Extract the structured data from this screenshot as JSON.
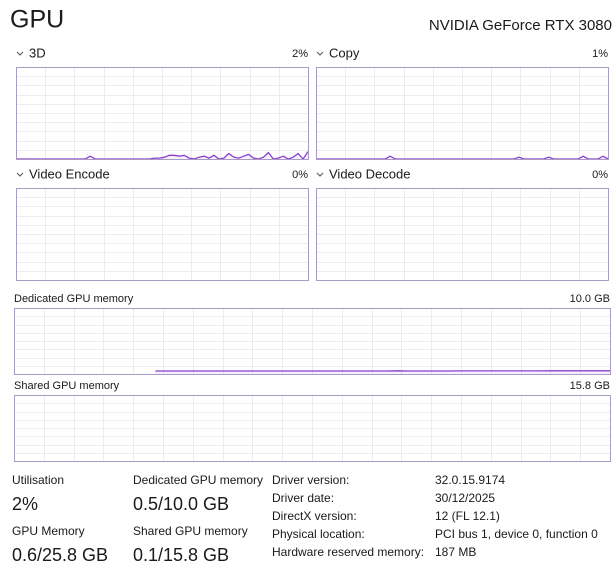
{
  "header": {
    "title": "GPU",
    "device": "NVIDIA GeForce RTX 3080"
  },
  "engines": [
    {
      "name": "3D",
      "usage": "2%",
      "max": 100,
      "values": [
        0,
        0,
        0,
        0,
        0,
        0,
        0,
        0,
        0,
        0,
        0,
        0,
        0,
        0,
        0,
        3,
        0,
        0,
        0,
        0,
        0,
        0,
        0,
        0,
        0,
        0,
        0,
        0,
        1,
        1,
        2,
        4,
        4,
        3,
        4,
        1,
        0,
        2,
        3,
        1,
        4,
        0,
        1,
        6,
        2,
        1,
        3,
        5,
        1,
        0,
        2,
        7,
        0,
        1,
        3,
        0,
        2,
        6,
        0,
        8
      ]
    },
    {
      "name": "Copy",
      "usage": "1%",
      "max": 100,
      "values": [
        0,
        0,
        0,
        0,
        0,
        0,
        0,
        0,
        0,
        0,
        0,
        0,
        0,
        0,
        0,
        3,
        0,
        0,
        0,
        0,
        0,
        0,
        0,
        0,
        0,
        0,
        0,
        0,
        0,
        0,
        0,
        0,
        0,
        0,
        0,
        0,
        0,
        0,
        0,
        0,
        0,
        2,
        0,
        0,
        0,
        0,
        0,
        2,
        0,
        0,
        0,
        0,
        0,
        0,
        3,
        0,
        0,
        0,
        3,
        0
      ]
    },
    {
      "name": "Video Encode",
      "usage": "0%"
    },
    {
      "name": "Video Decode",
      "usage": "0%"
    }
  ],
  "memory": [
    {
      "name": "Dedicated GPU memory",
      "capacity": "10.0 GB",
      "max": 10,
      "values": [
        null,
        null,
        null,
        null,
        null,
        null,
        null,
        null,
        null,
        null,
        null,
        null,
        null,
        null,
        0.45,
        0.46,
        0.46,
        0.46,
        0.46,
        0.46,
        0.46,
        0.46,
        0.46,
        0.46,
        0.46,
        0.46,
        0.46,
        0.46,
        0.46,
        0.46,
        0.46,
        0.46,
        0.46,
        0.46,
        0.46,
        0.46,
        0.46,
        0.46,
        0.48,
        0.46,
        0.46,
        0.46,
        0.46,
        0.46,
        0.47,
        0.47,
        0.47,
        0.47,
        0.47,
        0.47,
        0.47,
        0.47,
        0.47,
        0.48,
        0.48,
        0.48,
        0.48,
        0.48,
        0.48,
        0.48
      ]
    },
    {
      "name": "Shared GPU memory",
      "capacity": "15.8 GB"
    }
  ],
  "stats": [
    {
      "label": "Utilisation",
      "value": "2%"
    },
    {
      "label": "Dedicated GPU memory",
      "value": "0.5/10.0 GB"
    },
    {
      "label": "GPU Memory",
      "value": "0.6/25.8 GB"
    },
    {
      "label": "Shared GPU memory",
      "value": "0.1/15.8 GB"
    }
  ],
  "details": [
    {
      "label": "Driver version:",
      "value": "32.0.15.9174"
    },
    {
      "label": "Driver date:",
      "value": "30/12/2025"
    },
    {
      "label": "DirectX version:",
      "value": "12 (FL 12.1)"
    },
    {
      "label": "Physical location:",
      "value": "PCI bus 1, device 0, function 0"
    },
    {
      "label": "Hardware reserved memory:",
      "value": "187 MB"
    }
  ]
}
